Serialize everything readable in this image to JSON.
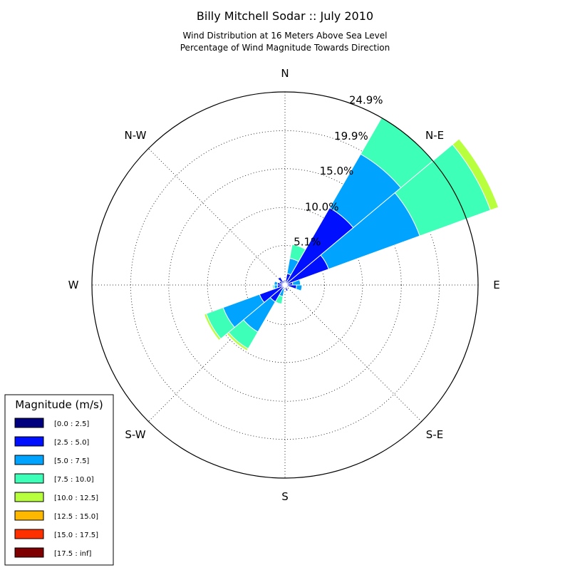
{
  "chart_data": {
    "type": "windrose",
    "title": "Billy Mitchell Sodar :: July 2010",
    "subtitle_lines": [
      "Wind Distribution at 16 Meters Above Sea Level",
      "Percentage of Wind Magnitude Towards Direction"
    ],
    "directions": [
      "N",
      "N-E",
      "E",
      "S-E",
      "S",
      "S-W",
      "W",
      "N-W"
    ],
    "radial_labels": [
      "5.1%",
      "10.0%",
      "15.0%",
      "19.9%",
      "24.9%"
    ],
    "radial_values": [
      5.1,
      10.0,
      15.0,
      19.9,
      24.9
    ],
    "rmax": 24.9,
    "sector_width_deg": 20,
    "legend": {
      "title": "Magnitude (m/s)",
      "entries": [
        {
          "label": "[0.0 : 2.5]",
          "color": "#00007f"
        },
        {
          "label": "[2.5 : 5.0]",
          "color": "#0010ff"
        },
        {
          "label": "[5.0 : 7.5]",
          "color": "#00a4ff"
        },
        {
          "label": "[7.5 : 10.0]",
          "color": "#3effb8"
        },
        {
          "label": "[10.0 : 12.5]",
          "color": "#b8ff3e"
        },
        {
          "label": "[12.5 : 15.0]",
          "color": "#ffb800"
        },
        {
          "label": "[15.0 : 17.5]",
          "color": "#ff3000"
        },
        {
          "label": "[17.5 : inf]",
          "color": "#7f0000"
        }
      ]
    },
    "sectors": [
      {
        "direction_deg": 0,
        "cum": [
          0.0,
          0.5
        ]
      },
      {
        "direction_deg": 20,
        "cum": [
          0.0,
          1.5,
          3.5,
          5.3
        ]
      },
      {
        "direction_deg": 40,
        "cum": [
          0.0,
          11.5,
          19.5,
          25.0
        ]
      },
      {
        "direction_deg": 60,
        "cum": [
          0.0,
          6.0,
          18.5,
          28.2,
          29.3
        ]
      },
      {
        "direction_deg": 80,
        "cum": [
          0.0,
          1.0,
          2.0
        ]
      },
      {
        "direction_deg": 100,
        "cum": [
          0.0,
          1.5,
          2.2
        ]
      },
      {
        "direction_deg": 120,
        "cum": [
          0.0,
          0.5
        ]
      },
      {
        "direction_deg": 160,
        "cum": [
          0.0,
          0.8
        ]
      },
      {
        "direction_deg": 200,
        "cum": [
          0.0,
          0.5,
          1.5,
          2.5
        ]
      },
      {
        "direction_deg": 220,
        "cum": [
          0.0,
          2.5,
          7.0,
          9.5,
          9.8
        ]
      },
      {
        "direction_deg": 240,
        "cum": [
          0.0,
          3.5,
          8.5,
          10.8,
          11.1
        ]
      },
      {
        "direction_deg": 260,
        "cum": [
          0.0,
          1.0,
          1.4,
          1.6
        ]
      },
      {
        "direction_deg": 280,
        "cum": [
          0.0,
          1.0,
          1.4
        ]
      },
      {
        "direction_deg": 300,
        "cum": [
          0.0,
          0.8
        ]
      },
      {
        "direction_deg": 320,
        "cum": [
          0.0,
          1.2
        ]
      },
      {
        "direction_deg": 340,
        "cum": [
          0.0,
          0.6
        ]
      }
    ]
  }
}
